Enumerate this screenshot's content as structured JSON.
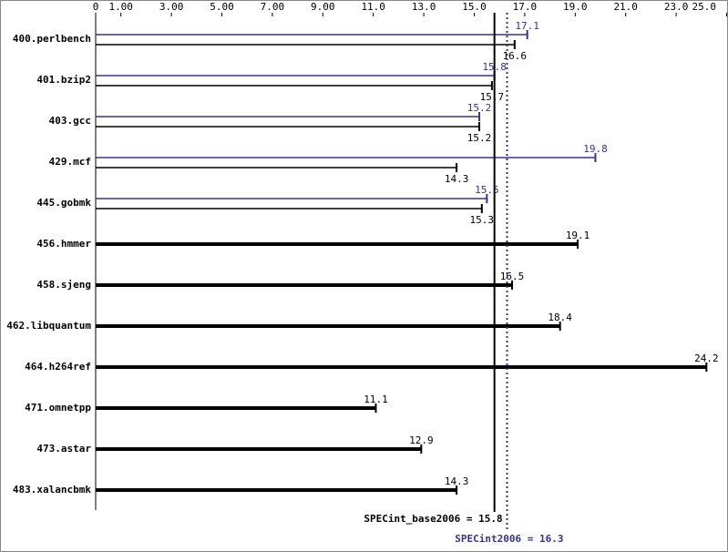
{
  "chart_data": {
    "type": "bar",
    "orientation": "horizontal",
    "categories": [
      "400.perlbench",
      "401.bzip2",
      "403.gcc",
      "429.mcf",
      "445.gobmk",
      "456.hmmer",
      "458.sjeng",
      "462.libquantum",
      "464.h264ref",
      "471.omnetpp",
      "473.astar",
      "483.xalancbmk"
    ],
    "series": [
      {
        "color": "#000000",
        "values": [
          16.6,
          15.7,
          15.2,
          14.3,
          15.3,
          19.1,
          16.5,
          18.4,
          24.2,
          11.1,
          12.9,
          14.3
        ]
      },
      {
        "color": "#333399",
        "values": [
          17.1,
          15.8,
          15.2,
          19.8,
          15.5,
          null,
          null,
          null,
          null,
          null,
          null,
          null
        ]
      }
    ],
    "xlim": [
      0,
      25.0
    ],
    "xticks": [
      0,
      {
        "value": 1,
        "label": "1.00"
      },
      {
        "value": 3,
        "label": "3.00"
      },
      {
        "value": 5,
        "label": "5.00"
      },
      {
        "value": 7,
        "label": "7.00"
      },
      {
        "value": 9,
        "label": "9.00"
      },
      {
        "value": 11,
        "label": "11.0"
      },
      {
        "value": 13,
        "label": "13.0"
      },
      {
        "value": 15,
        "label": "15.0"
      },
      {
        "value": 17,
        "label": "17.0"
      },
      {
        "value": 19,
        "label": "19.0"
      },
      {
        "value": 21,
        "label": "21.0"
      },
      {
        "value": 23,
        "label": "23.0"
      },
      {
        "value": 25,
        "label": "25.0"
      }
    ],
    "reference_lines": [
      {
        "text": "SPECint_base2006 = 15.8",
        "value": 15.8,
        "color": "#000000",
        "style": "solid"
      },
      {
        "text": "SPECint2006 = 16.3",
        "value": 16.3,
        "color": "#333399",
        "style": "dotted"
      }
    ]
  }
}
